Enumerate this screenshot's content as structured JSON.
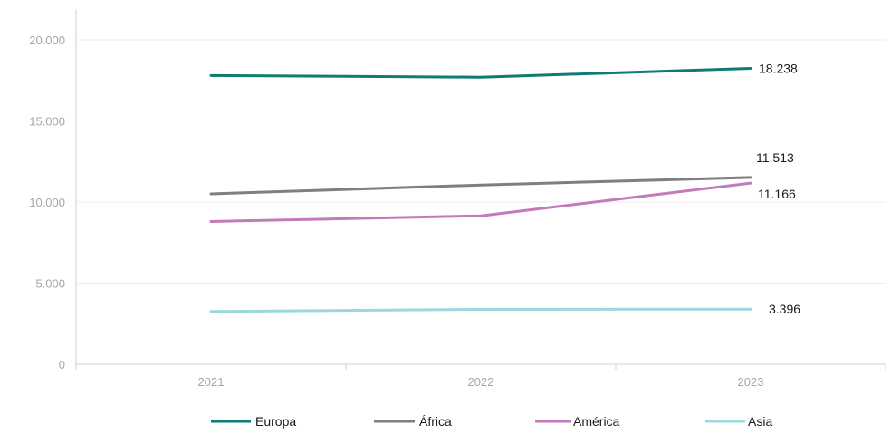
{
  "chart_data": {
    "type": "line",
    "title": "",
    "xlabel": "",
    "ylabel": "",
    "x": [
      "2021",
      "2022",
      "2023"
    ],
    "ylim": [
      0,
      20000
    ],
    "yticks": [
      0,
      5000,
      10000,
      15000,
      20000
    ],
    "ytick_labels": [
      "0",
      "5.000",
      "10.000",
      "15.000",
      "20.000"
    ],
    "grid": true,
    "legend_position": "bottom",
    "series": [
      {
        "name": "Europa",
        "color": "#0f7b73",
        "values": [
          17800,
          17700,
          18238
        ],
        "end_label": "18.238"
      },
      {
        "name": "África",
        "color": "#7f7f7f",
        "values": [
          10500,
          11050,
          11513
        ],
        "end_label": "11.513"
      },
      {
        "name": "América",
        "color": "#c27bb8",
        "values": [
          8800,
          9150,
          11166
        ],
        "end_label": "11.166"
      },
      {
        "name": "Asia",
        "color": "#9ad8dc",
        "values": [
          3250,
          3380,
          3396
        ],
        "end_label": "3.396"
      }
    ]
  }
}
